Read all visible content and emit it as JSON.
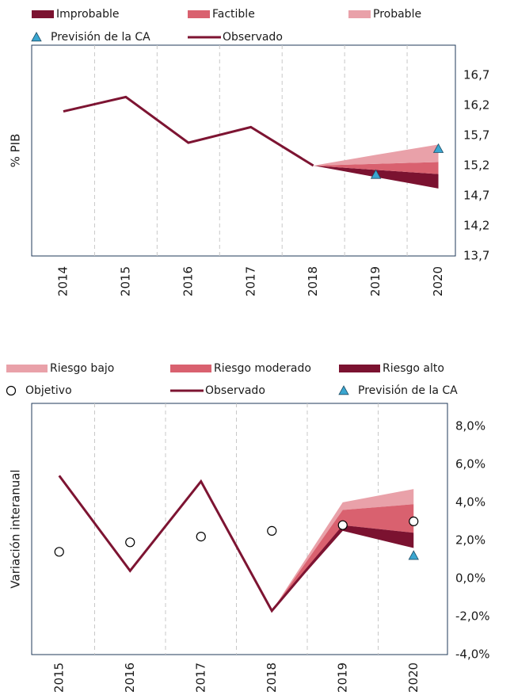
{
  "chart_data": [
    {
      "type": "line",
      "y_label": "% PIB",
      "categories": [
        "2014",
        "2015",
        "2016",
        "2017",
        "2018",
        "2019",
        "2020"
      ],
      "ylim": [
        13.7,
        17.2
      ],
      "yticks": [
        {
          "value": 13.7,
          "label": "13,7"
        },
        {
          "value": 14.2,
          "label": "14,2"
        },
        {
          "value": 14.7,
          "label": "14,7"
        },
        {
          "value": 15.2,
          "label": "15,2"
        },
        {
          "value": 15.7,
          "label": "15,7"
        },
        {
          "value": 16.2,
          "label": "16,2"
        },
        {
          "value": 16.7,
          "label": "16,7"
        }
      ],
      "grid": true,
      "series": [
        {
          "name": "Improbable",
          "type": "band",
          "color": "#7b1230",
          "low": [
            null,
            null,
            null,
            null,
            15.2,
            15.01,
            14.82
          ],
          "high": [
            null,
            null,
            null,
            null,
            15.2,
            15.13,
            15.06
          ]
        },
        {
          "name": "Factible",
          "type": "band",
          "color": "#d9616f",
          "low": [
            null,
            null,
            null,
            null,
            15.2,
            15.13,
            15.06
          ],
          "high": [
            null,
            null,
            null,
            null,
            15.2,
            15.23,
            15.26
          ]
        },
        {
          "name": "Probable",
          "type": "band",
          "color": "#e9a1a9",
          "low": [
            null,
            null,
            null,
            null,
            15.2,
            15.23,
            15.26
          ],
          "high": [
            null,
            null,
            null,
            null,
            15.2,
            15.38,
            15.55
          ]
        },
        {
          "name": "Previsión de la CA",
          "type": "marker",
          "marker": "triangle",
          "color": "#3aa6d0",
          "values": [
            null,
            null,
            null,
            null,
            null,
            15.05,
            15.48
          ]
        },
        {
          "name": "Observado",
          "type": "line",
          "color": "#7d1432",
          "values": [
            16.1,
            16.34,
            15.58,
            15.84,
            15.2,
            null,
            null
          ]
        }
      ]
    },
    {
      "type": "line",
      "y_label": "Variación interanual",
      "categories": [
        "2015",
        "2016",
        "2017",
        "2018",
        "2019",
        "2020"
      ],
      "ylim": [
        -4,
        9.2
      ],
      "yticks": [
        {
          "value": -4,
          "label": "-4,0%"
        },
        {
          "value": -2,
          "label": "-2,0%"
        },
        {
          "value": 0,
          "label": "0,0%"
        },
        {
          "value": 2,
          "label": "2,0%"
        },
        {
          "value": 4,
          "label": "4,0%"
        },
        {
          "value": 6,
          "label": "6,0%"
        },
        {
          "value": 8,
          "label": "8,0%"
        }
      ],
      "grid": true,
      "series": [
        {
          "name": "Riesgo bajo",
          "type": "band",
          "color": "#e9a1a9",
          "low": [
            null,
            null,
            null,
            -1.7,
            3.6,
            3.9
          ],
          "high": [
            null,
            null,
            null,
            -1.7,
            4.0,
            4.7
          ]
        },
        {
          "name": "Riesgo moderado",
          "type": "band",
          "color": "#d9616f",
          "low": [
            null,
            null,
            null,
            -1.7,
            2.8,
            2.4
          ],
          "high": [
            null,
            null,
            null,
            -1.7,
            3.6,
            3.9
          ]
        },
        {
          "name": "Riesgo alto",
          "type": "band",
          "color": "#7b1230",
          "low": [
            null,
            null,
            null,
            -1.7,
            2.5,
            1.6
          ],
          "high": [
            null,
            null,
            null,
            -1.7,
            2.8,
            2.4
          ]
        },
        {
          "name": "Objetivo",
          "type": "marker",
          "marker": "circle",
          "color": "#ffffff",
          "values": [
            1.4,
            1.9,
            2.2,
            2.5,
            2.8,
            3.0
          ]
        },
        {
          "name": "Observado",
          "type": "line",
          "color": "#7d1432",
          "values": [
            5.4,
            0.4,
            5.1,
            -1.7,
            2.7,
            null
          ]
        },
        {
          "name": "Previsión de la CA",
          "type": "marker",
          "marker": "triangle",
          "color": "#3aa6d0",
          "values": [
            null,
            null,
            null,
            null,
            null,
            1.2
          ]
        }
      ]
    }
  ]
}
